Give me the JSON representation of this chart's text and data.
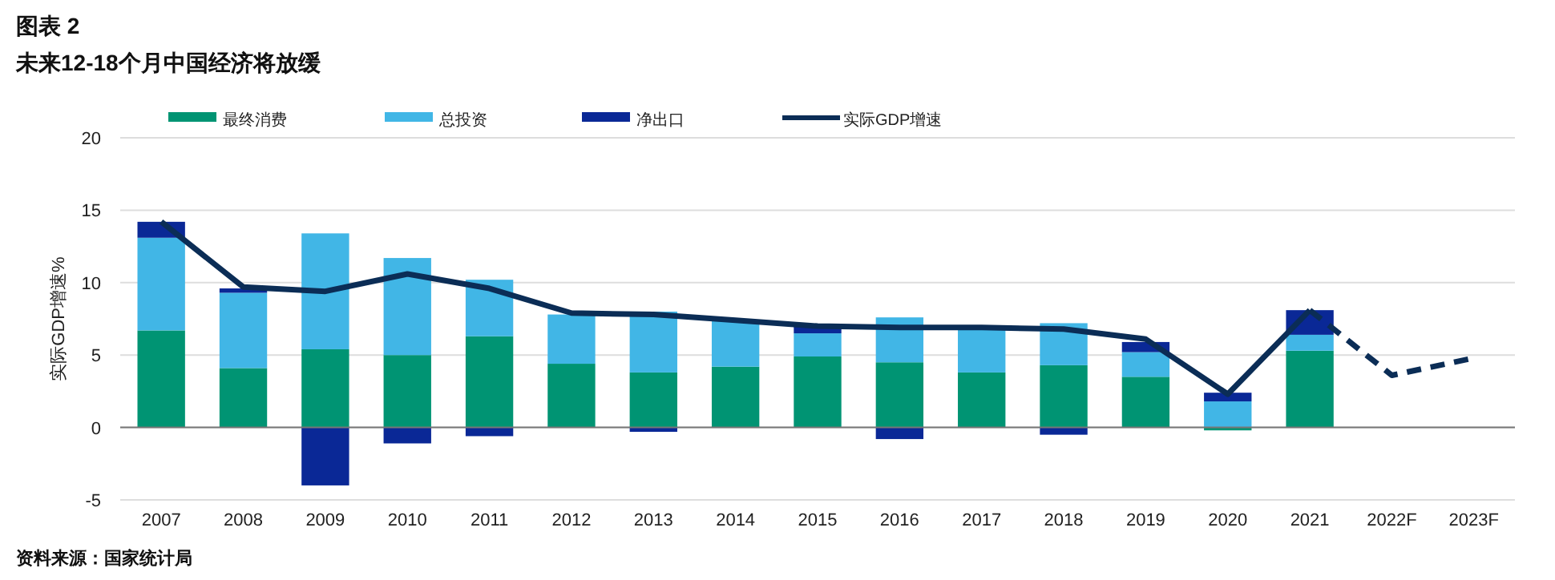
{
  "chart_data": {
    "type": "bar",
    "stacked": true,
    "title": "图表 2",
    "subtitle": "未来12-18个月中国经济将放缓",
    "ylabel": "实际GDP增速%",
    "categories": [
      "2007",
      "2008",
      "2009",
      "2010",
      "2011",
      "2012",
      "2013",
      "2014",
      "2015",
      "2016",
      "2017",
      "2018",
      "2019",
      "2020",
      "2021",
      "2022F",
      "2023F"
    ],
    "series": [
      {
        "name": "最终消费",
        "color": "#009473",
        "values": [
          6.7,
          4.1,
          5.4,
          5.0,
          6.3,
          4.4,
          3.8,
          4.2,
          4.9,
          4.5,
          3.8,
          4.3,
          3.5,
          -0.2,
          5.3,
          null,
          null
        ]
      },
      {
        "name": "总投资",
        "color": "#41b6e6",
        "values": [
          6.4,
          5.2,
          8.0,
          6.7,
          3.9,
          3.4,
          4.2,
          3.2,
          1.6,
          3.1,
          3.1,
          2.9,
          1.7,
          1.8,
          1.1,
          null,
          null
        ]
      },
      {
        "name": "净出口",
        "color": "#0a2896",
        "values": [
          1.1,
          0.3,
          -4.0,
          -1.1,
          -0.6,
          null,
          -0.3,
          null,
          0.5,
          -0.8,
          0.0,
          -0.5,
          0.7,
          0.6,
          1.7,
          null,
          null
        ]
      },
      {
        "name": "实际GDP增速",
        "type": "line",
        "color": "#0b2d56",
        "line_style": "solid",
        "values": [
          14.2,
          9.7,
          9.4,
          10.6,
          9.6,
          7.9,
          7.8,
          7.4,
          7.0,
          6.9,
          6.9,
          6.8,
          6.1,
          2.3,
          8.1,
          null,
          null
        ]
      },
      {
        "type": "line",
        "color": "#0b2d56",
        "line_style": "dashed",
        "values": [
          null,
          null,
          null,
          null,
          null,
          null,
          null,
          null,
          null,
          null,
          null,
          null,
          null,
          null,
          8.1,
          3.6,
          4.8
        ]
      }
    ],
    "ylim": [
      -5,
      20
    ],
    "yticks": [
      -5,
      0,
      5,
      10,
      15,
      20
    ],
    "grid": "y",
    "legend": "top",
    "annotations": [
      "资料来源：国家统计局"
    ]
  }
}
